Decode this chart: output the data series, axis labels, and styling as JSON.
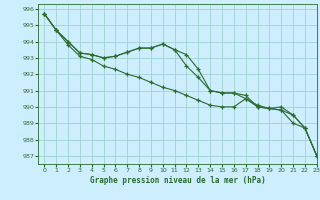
{
  "background_color": "#cceeff",
  "grid_color": "#99cccc",
  "line_color": "#2d6b2d",
  "title": "Graphe pression niveau de la mer (hPa)",
  "xlim": [
    -0.5,
    23
  ],
  "ylim": [
    986.5,
    996.3
  ],
  "yticks": [
    987,
    988,
    989,
    990,
    991,
    992,
    993,
    994,
    995,
    996
  ],
  "xticks": [
    0,
    1,
    2,
    3,
    4,
    5,
    6,
    7,
    8,
    9,
    10,
    11,
    12,
    13,
    14,
    15,
    16,
    17,
    18,
    19,
    20,
    21,
    22,
    23
  ],
  "series": [
    {
      "x": [
        0,
        1,
        2,
        3,
        4,
        5,
        6,
        7,
        8,
        9,
        10,
        11,
        12,
        13,
        14,
        15,
        16,
        17,
        18,
        19,
        20,
        21,
        22,
        23
      ],
      "y": [
        995.7,
        994.7,
        994.0,
        993.3,
        993.2,
        993.0,
        993.1,
        993.35,
        993.6,
        993.6,
        993.85,
        993.5,
        993.2,
        992.3,
        991.0,
        990.85,
        990.85,
        990.7,
        990.0,
        989.9,
        990.0,
        989.5,
        988.7,
        987.0
      ]
    },
    {
      "x": [
        0,
        1,
        2,
        3,
        4,
        5,
        6,
        7,
        8,
        9,
        10,
        11,
        12,
        13,
        14,
        15,
        16,
        17,
        18,
        19,
        20,
        21,
        22,
        23
      ],
      "y": [
        995.7,
        994.7,
        994.0,
        993.3,
        993.2,
        993.0,
        993.1,
        993.35,
        993.6,
        993.6,
        993.85,
        993.5,
        992.5,
        991.8,
        991.0,
        990.85,
        990.85,
        990.5,
        990.0,
        989.9,
        989.8,
        989.5,
        988.7,
        987.0
      ]
    },
    {
      "x": [
        0,
        1,
        2,
        3,
        4,
        5,
        6,
        7,
        8,
        9,
        10,
        11,
        12,
        13,
        14,
        15,
        16,
        17,
        18,
        19,
        20,
        21,
        22,
        23
      ],
      "y": [
        995.7,
        994.7,
        993.8,
        993.1,
        992.9,
        992.5,
        992.3,
        992.0,
        991.8,
        991.5,
        991.2,
        991.0,
        990.7,
        990.4,
        990.1,
        990.0,
        990.0,
        990.5,
        990.1,
        989.9,
        989.8,
        989.0,
        988.7,
        987.0
      ]
    }
  ]
}
